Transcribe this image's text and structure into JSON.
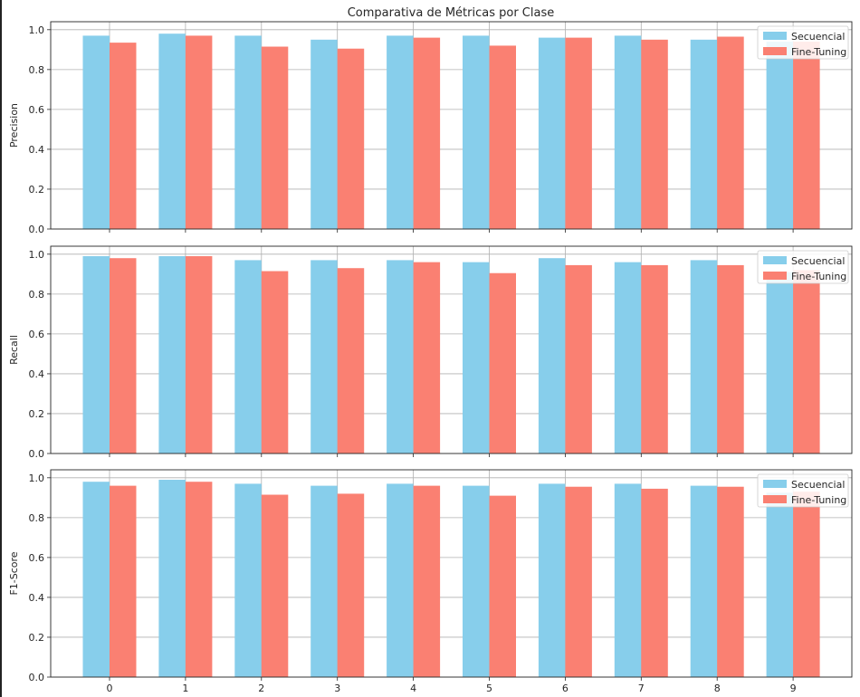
{
  "colors": {
    "secuencial": "#87CEEB",
    "fine_tuning": "#FA8072",
    "grid": "#b0b0b0",
    "axis": "#262626"
  },
  "chart_data": {
    "type": "bar",
    "title": "Comparativa de Métricas por Clase",
    "categories": [
      "0",
      "1",
      "2",
      "3",
      "4",
      "5",
      "6",
      "7",
      "8",
      "9"
    ],
    "series_names": [
      "Secuencial",
      "Fine-Tuning"
    ],
    "subplots": [
      {
        "ylabel": "Precision",
        "ylim": [
          0,
          1.0
        ],
        "yticks": [
          "0.0",
          "0.2",
          "0.4",
          "0.6",
          "0.8",
          "1.0"
        ],
        "legend": "top-right",
        "grid": true,
        "series": [
          {
            "name": "Secuencial",
            "values": [
              0.97,
              0.98,
              0.97,
              0.95,
              0.97,
              0.97,
              0.96,
              0.97,
              0.95,
              0.94
            ]
          },
          {
            "name": "Fine-Tuning",
            "values": [
              0.935,
              0.97,
              0.915,
              0.905,
              0.96,
              0.92,
              0.96,
              0.95,
              0.965,
              0.94
            ]
          }
        ]
      },
      {
        "ylabel": "Recall",
        "ylim": [
          0,
          1.0
        ],
        "yticks": [
          "0.0",
          "0.2",
          "0.4",
          "0.6",
          "0.8",
          "1.0"
        ],
        "legend": "top-right",
        "grid": true,
        "series": [
          {
            "name": "Secuencial",
            "values": [
              0.99,
              0.99,
              0.97,
              0.97,
              0.97,
              0.96,
              0.98,
              0.96,
              0.97,
              0.91
            ]
          },
          {
            "name": "Fine-Tuning",
            "values": [
              0.98,
              0.99,
              0.915,
              0.93,
              0.96,
              0.905,
              0.945,
              0.945,
              0.945,
              0.92
            ]
          }
        ]
      },
      {
        "ylabel": "F1-Score",
        "ylim": [
          0,
          1.0
        ],
        "yticks": [
          "0.0",
          "0.2",
          "0.4",
          "0.6",
          "0.8",
          "1.0"
        ],
        "legend": "top-right",
        "grid": true,
        "series": [
          {
            "name": "Secuencial",
            "values": [
              0.98,
              0.99,
              0.97,
              0.96,
              0.97,
              0.96,
              0.97,
              0.97,
              0.96,
              0.925
            ]
          },
          {
            "name": "Fine-Tuning",
            "values": [
              0.96,
              0.98,
              0.915,
              0.92,
              0.96,
              0.91,
              0.955,
              0.945,
              0.955,
              0.93
            ]
          }
        ]
      }
    ]
  }
}
